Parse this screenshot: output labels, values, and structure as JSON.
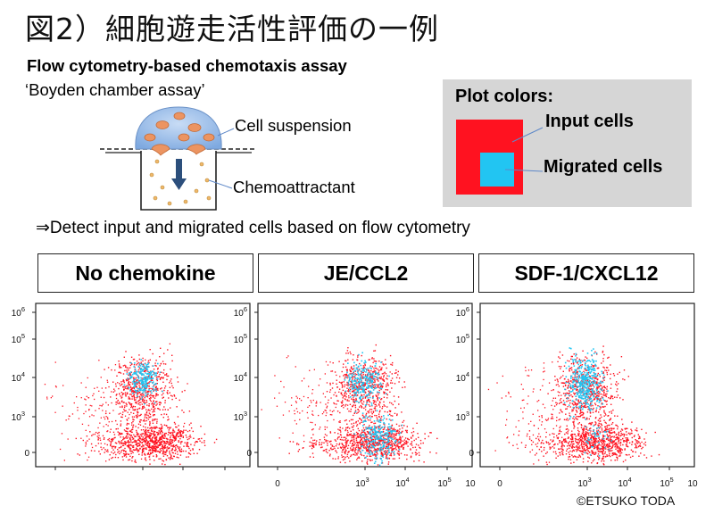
{
  "title": "図2）細胞遊走活性評価の一例",
  "subtitle": "Flow cytometry-based chemotaxis assay",
  "assay_name": "‘Boyden chamber assay’",
  "diagram": {
    "cell_suspension_label": "Cell suspension",
    "chemoattractant_label": "Chemoattractant"
  },
  "legend": {
    "title": "Plot colors:",
    "input_label": "Input cells",
    "migrated_label": "Migrated cells",
    "input_color": "#ff1220",
    "migrated_color": "#22c5f2"
  },
  "detect_text": "⇒Detect input and migrated cells based on flow cytometry",
  "conditions": [
    "No chemokine",
    "JE/CCL2",
    "SDF-1/CXCL12"
  ],
  "axis": {
    "y_tick_labels": [
      {
        "base": "10",
        "exp": "6"
      },
      {
        "base": "10",
        "exp": "5"
      },
      {
        "base": "10",
        "exp": "4"
      },
      {
        "base": "10",
        "exp": "3"
      },
      {
        "base": "0",
        "exp": ""
      }
    ],
    "x_tick_labels": [
      {
        "base": "0",
        "exp": ""
      },
      {
        "base": "10",
        "exp": "3"
      },
      {
        "base": "10",
        "exp": "4"
      },
      {
        "base": "10",
        "exp": "5"
      },
      {
        "base": "10",
        "exp": ""
      }
    ]
  },
  "copyright": "©ETSUKO TODA"
}
